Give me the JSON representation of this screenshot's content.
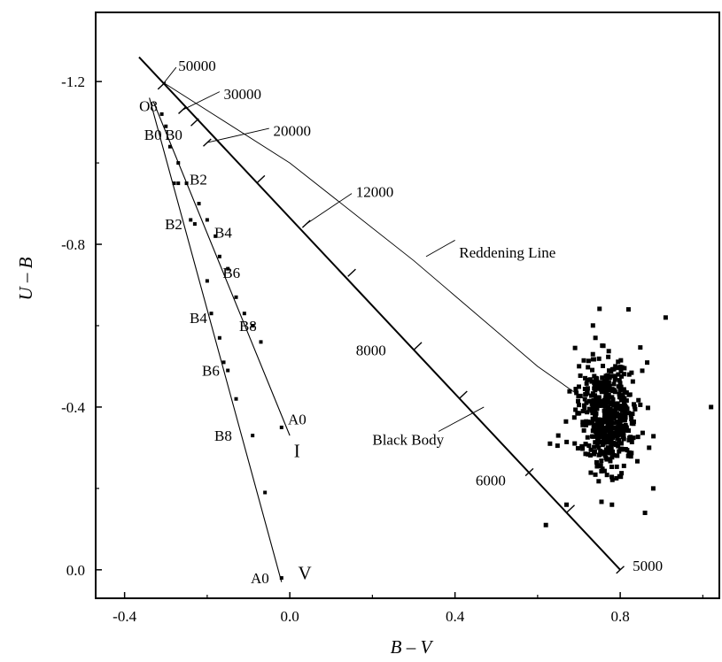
{
  "chart_data": {
    "type": "scatter",
    "title": "",
    "xlabel": "B – V",
    "ylabel": "U – B",
    "xlim": [
      -0.47,
      1.04
    ],
    "ylim": [
      0.07,
      -1.37
    ],
    "y_axis_inverted": true,
    "grid": false,
    "legend": "none",
    "x_ticks": [
      {
        "value": -0.4,
        "label": "-0.4"
      },
      {
        "value": 0.0,
        "label": "0.0"
      },
      {
        "value": 0.4,
        "label": "0.4"
      },
      {
        "value": 0.8,
        "label": "0.8"
      }
    ],
    "y_ticks": [
      {
        "value": -1.2,
        "label": "-1.2"
      },
      {
        "value": -0.8,
        "label": "-0.8"
      },
      {
        "value": -0.4,
        "label": "-0.4"
      },
      {
        "value": 0.0,
        "label": "0.0"
      }
    ],
    "series": [
      {
        "name": "V",
        "marker": "dot",
        "line": [
          [
            -0.34,
            -1.16
          ],
          [
            -0.02,
            0.03
          ]
        ],
        "points": [
          [
            -0.31,
            -1.12
          ],
          [
            -0.3,
            -1.09
          ],
          [
            -0.28,
            -0.95
          ],
          [
            -0.27,
            -0.95
          ],
          [
            -0.24,
            -0.86
          ],
          [
            -0.23,
            -0.85
          ],
          [
            -0.2,
            -0.71
          ],
          [
            -0.19,
            -0.63
          ],
          [
            -0.17,
            -0.57
          ],
          [
            -0.16,
            -0.51
          ],
          [
            -0.15,
            -0.49
          ],
          [
            -0.13,
            -0.42
          ],
          [
            -0.09,
            -0.33
          ],
          [
            -0.06,
            -0.19
          ],
          [
            -0.02,
            0.02
          ]
        ],
        "labels": [
          {
            "text": "O8",
            "at": [
              -0.32,
              -1.14
            ]
          },
          {
            "text": "B0",
            "at": [
              -0.31,
              -1.07
            ]
          },
          {
            "text": "B2",
            "at": [
              -0.26,
              -0.85
            ]
          },
          {
            "text": "B4",
            "at": [
              -0.2,
              -0.62
            ]
          },
          {
            "text": "B6",
            "at": [
              -0.17,
              -0.49
            ]
          },
          {
            "text": "B8",
            "at": [
              -0.14,
              -0.33
            ]
          },
          {
            "text": "A0",
            "at": [
              -0.05,
              0.02
            ]
          },
          {
            "text": "V",
            "at": [
              0.02,
              0.01
            ]
          }
        ]
      },
      {
        "name": "I",
        "marker": "dot",
        "line": [
          [
            -0.33,
            -1.15
          ],
          [
            0.0,
            -0.33
          ]
        ],
        "points": [
          [
            -0.29,
            -1.04
          ],
          [
            -0.27,
            -1.0
          ],
          [
            -0.25,
            -0.95
          ],
          [
            -0.22,
            -0.9
          ],
          [
            -0.2,
            -0.86
          ],
          [
            -0.18,
            -0.82
          ],
          [
            -0.17,
            -0.77
          ],
          [
            -0.15,
            -0.74
          ],
          [
            -0.13,
            -0.67
          ],
          [
            -0.11,
            -0.63
          ],
          [
            -0.09,
            -0.6
          ],
          [
            -0.07,
            -0.56
          ],
          [
            -0.02,
            -0.35
          ]
        ],
        "labels": [
          {
            "text": "B0",
            "at": [
              -0.26,
              -1.07
            ]
          },
          {
            "text": "B2",
            "at": [
              -0.2,
              -0.96
            ]
          },
          {
            "text": "B4",
            "at": [
              -0.14,
              -0.83
            ]
          },
          {
            "text": "B6",
            "at": [
              -0.12,
              -0.73
            ]
          },
          {
            "text": "B8",
            "at": [
              -0.08,
              -0.6
            ]
          },
          {
            "text": "A0",
            "at": [
              0.04,
              -0.37
            ]
          },
          {
            "text": "I",
            "at": [
              0.01,
              -0.29
            ]
          }
        ]
      },
      {
        "name": "Black Body",
        "marker": "none",
        "line": [
          [
            -0.365,
            -1.26
          ],
          [
            0.8,
            0.0
          ]
        ],
        "temperature_ticks": [
          {
            "T": 50000,
            "at": [
              -0.31,
              -1.19
            ]
          },
          {
            "T": 30000,
            "at": [
              -0.26,
              -1.13
            ]
          },
          {
            "T": 20000,
            "at": [
              -0.2,
              -1.05
            ]
          },
          {
            "T": 12000,
            "at": [
              0.04,
              -0.85
            ]
          },
          {
            "T": 8000,
            "at": [
              0.31,
              -0.55
            ]
          },
          {
            "T": 6000,
            "at": [
              0.58,
              -0.24
            ]
          },
          {
            "T": 5000,
            "at": [
              0.8,
              0.0
            ]
          }
        ],
        "extra_ticks_at": [
          [
            -0.23,
            -1.1
          ],
          [
            -0.07,
            -0.96
          ],
          [
            0.15,
            -0.73
          ],
          [
            0.42,
            -0.43
          ],
          [
            0.68,
            -0.15
          ]
        ]
      },
      {
        "name": "Reddening Line",
        "marker": "none",
        "path": [
          [
            -0.31,
            -1.2
          ],
          [
            0.0,
            -1.0
          ],
          [
            0.3,
            -0.76
          ],
          [
            0.6,
            -0.5
          ],
          [
            0.74,
            -0.4
          ]
        ]
      },
      {
        "name": "cluster",
        "marker": "square",
        "center": [
          0.77,
          -0.38
        ],
        "n_points": 540,
        "outliers": [
          [
            0.82,
            -0.64
          ],
          [
            0.91,
            -0.62
          ],
          [
            1.02,
            -0.4
          ],
          [
            0.62,
            -0.11
          ],
          [
            0.67,
            -0.16
          ],
          [
            0.86,
            -0.14
          ],
          [
            0.65,
            -0.33
          ],
          [
            0.63,
            -0.31
          ],
          [
            0.7,
            -0.45
          ],
          [
            0.74,
            -0.57
          ],
          [
            0.88,
            -0.2
          ],
          [
            0.87,
            -0.3
          ],
          [
            0.78,
            -0.16
          ]
        ]
      }
    ],
    "annotations": [
      {
        "text": "50000",
        "at": [
          -0.27,
          -1.24
        ]
      },
      {
        "text": "30000",
        "at": [
          -0.16,
          -1.17
        ]
      },
      {
        "text": "20000",
        "at": [
          -0.04,
          -1.08
        ]
      },
      {
        "text": "12000",
        "at": [
          0.16,
          -0.93
        ]
      },
      {
        "text": "Reddening Line",
        "at": [
          0.41,
          -0.78
        ]
      },
      {
        "text": "8000",
        "at": [
          0.16,
          -0.54
        ]
      },
      {
        "text": "Black Body",
        "at": [
          0.2,
          -0.32
        ]
      },
      {
        "text": "6000",
        "at": [
          0.45,
          -0.22
        ]
      },
      {
        "text": "5000",
        "at": [
          0.83,
          -0.01
        ]
      }
    ]
  }
}
